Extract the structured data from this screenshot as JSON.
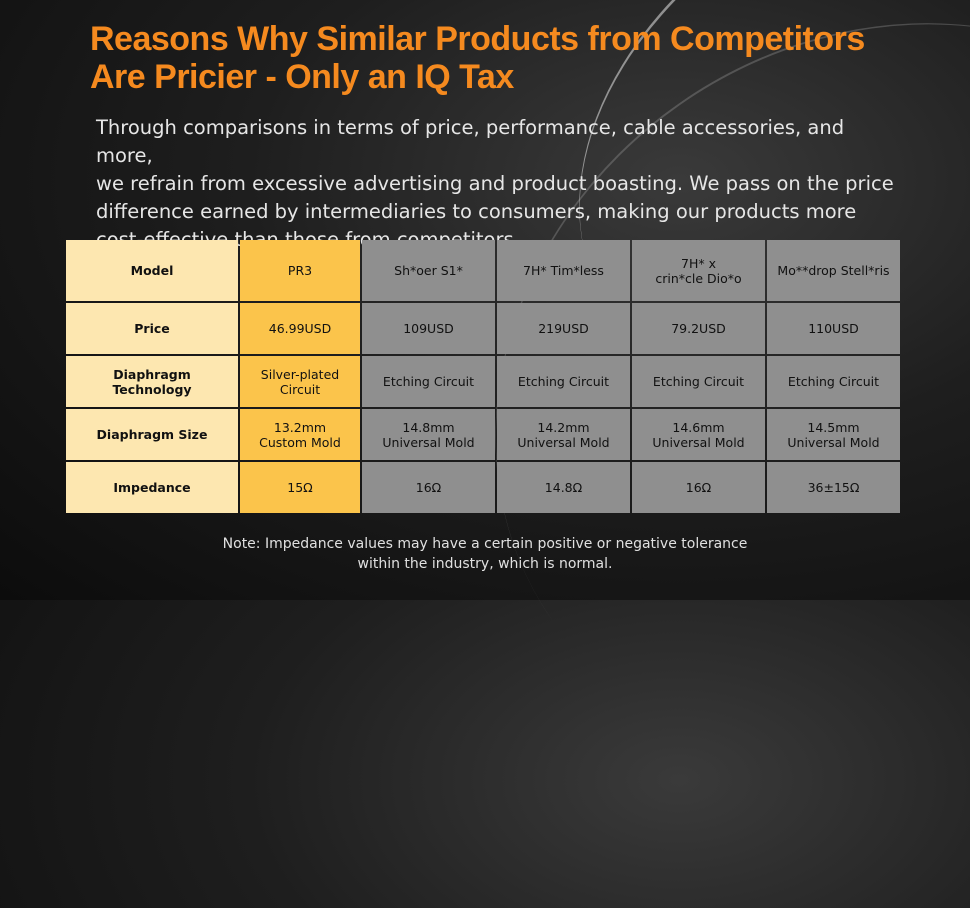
{
  "title": {
    "line1": "Reasons Why Similar Products from Competitors",
    "line2": "Are Pricier - Only an IQ Tax"
  },
  "description": {
    "line1": "Through comparisons in terms of price, performance, cable accessories, and more,",
    "line2": "we refrain from excessive advertising and product boasting. We pass on the price",
    "line3": "difference earned by intermediaries to consumers, making our products more",
    "line4": "cost-effective than those from competitors."
  },
  "table": {
    "rows": [
      {
        "label": [
          "Model"
        ],
        "own": [
          "PR3"
        ],
        "competitors": [
          [
            "Sh*oer S1*"
          ],
          [
            "7H* Tim*less"
          ],
          [
            "7H* x",
            "crin*cle Dio*o"
          ],
          [
            "Mo**drop Stell*ris"
          ]
        ]
      },
      {
        "label": [
          "Price"
        ],
        "own": [
          "46.99USD"
        ],
        "competitors": [
          [
            "109USD"
          ],
          [
            "219USD"
          ],
          [
            "79.2USD"
          ],
          [
            "110USD"
          ]
        ]
      },
      {
        "label": [
          "Diaphragm",
          "Technology"
        ],
        "own": [
          "Silver-plated Circuit"
        ],
        "competitors": [
          [
            "Etching Circuit"
          ],
          [
            "Etching Circuit"
          ],
          [
            "Etching Circuit"
          ],
          [
            "Etching Circuit"
          ]
        ]
      },
      {
        "label": [
          "Diaphragm Size"
        ],
        "own": [
          "13.2mm",
          "Custom Mold"
        ],
        "competitors": [
          [
            "14.8mm",
            "Universal Mold"
          ],
          [
            "14.2mm",
            "Universal Mold"
          ],
          [
            "14.6mm",
            "Universal Mold"
          ],
          [
            "14.5mm",
            "Universal Mold"
          ]
        ]
      },
      {
        "label": [
          "Impedance"
        ],
        "own": [
          "15Ω"
        ],
        "competitors": [
          [
            "16Ω"
          ],
          [
            "14.8Ω"
          ],
          [
            "16Ω"
          ],
          [
            "36±15Ω"
          ]
        ]
      }
    ]
  },
  "note": {
    "line1": "Note: Impedance values may have a certain positive or negative tolerance",
    "line2": "within the industry, which is normal."
  },
  "colors": {
    "title": "#f58a1f",
    "label_cell": "#fde7b0",
    "own_cell": "#fbc44b",
    "competitor_cell": "#8f8f8f"
  }
}
